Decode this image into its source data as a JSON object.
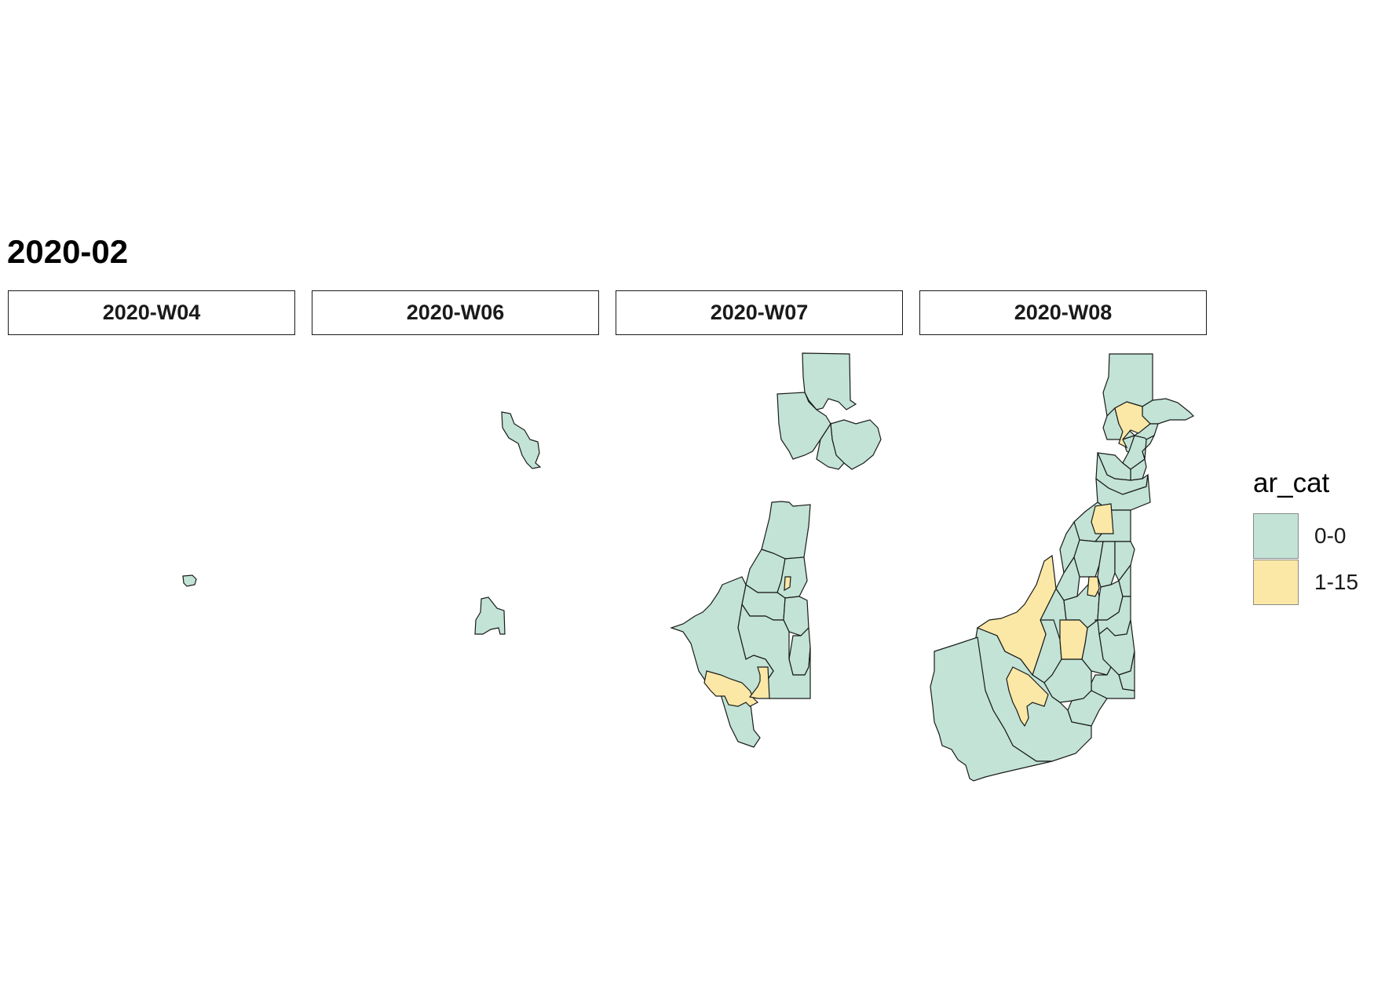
{
  "title": "2020-02",
  "panels": [
    {
      "label": "2020-W04"
    },
    {
      "label": "2020-W06"
    },
    {
      "label": "2020-W07"
    },
    {
      "label": "2020-W08"
    }
  ],
  "legend": {
    "title": "ar_cat",
    "items": [
      {
        "label": "0-0",
        "color": "#c2e3d6"
      },
      {
        "label": "1-15",
        "color": "#fce8a6"
      }
    ]
  }
}
